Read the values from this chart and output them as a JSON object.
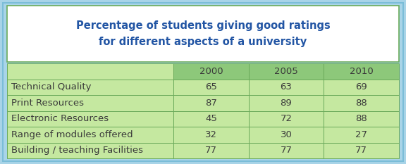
{
  "title_line1": "Percentage of students giving good ratings",
  "title_line2": "for different aspects of a university",
  "title_color": "#2255A4",
  "years": [
    "2000",
    "2005",
    "2010"
  ],
  "rows": [
    {
      "label": "Technical Quality",
      "values": [
        65,
        63,
        69
      ]
    },
    {
      "label": "Print Resources",
      "values": [
        87,
        89,
        88
      ]
    },
    {
      "label": "Electronic Resources",
      "values": [
        45,
        72,
        88
      ]
    },
    {
      "label": "Range of modules offered",
      "values": [
        32,
        30,
        27
      ]
    },
    {
      "label": "Building / teaching Facilities",
      "values": [
        77,
        77,
        77
      ]
    }
  ],
  "header_bg": "#8DC87A",
  "row_bg": "#C5E8A0",
  "title_box_bg": "#FFFFFF",
  "outer_bg_color": "#A8D4E8",
  "outer_border_color": "#7BBDD8",
  "title_box_border": "#6AAA5A",
  "inner_border_color": "#6AAA5A",
  "text_color": "#3A3A3A",
  "header_text_color": "#3A3A3A",
  "title_font_size": 10.5,
  "header_font_size": 9.5,
  "cell_font_size": 9.5,
  "figsize": [
    5.76,
    2.33
  ],
  "dpi": 100
}
